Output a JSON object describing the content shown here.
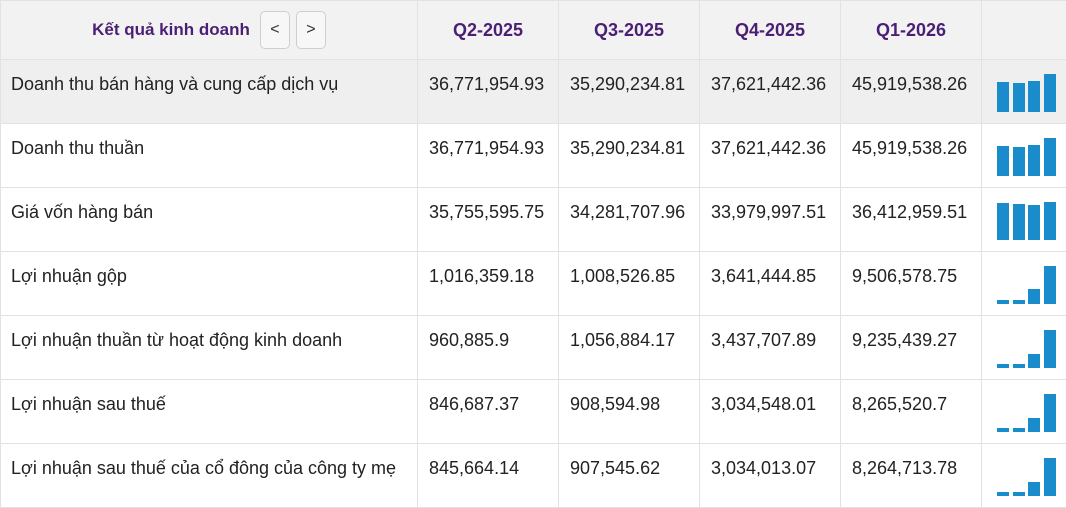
{
  "header": {
    "title": "Kết quả kinh doanh",
    "prev_label": "<",
    "next_label": ">",
    "periods": [
      "Q2-2025",
      "Q3-2025",
      "Q4-2025",
      "Q1-2026"
    ]
  },
  "colors": {
    "accent": "#4b1f74",
    "bar": "#1a8ccb",
    "highlight_row": "#efefef"
  },
  "rows": [
    {
      "label": "Doanh thu bán hàng và cung cấp dịch vụ",
      "values": [
        "36,771,954.93",
        "35,290,234.81",
        "37,621,442.36",
        "45,919,538.26"
      ],
      "raw": [
        36771954.93,
        35290234.81,
        37621442.36,
        45919538.26
      ]
    },
    {
      "label": "Doanh thu thuần",
      "values": [
        "36,771,954.93",
        "35,290,234.81",
        "37,621,442.36",
        "45,919,538.26"
      ],
      "raw": [
        36771954.93,
        35290234.81,
        37621442.36,
        45919538.26
      ]
    },
    {
      "label": "Giá vốn hàng bán",
      "values": [
        "35,755,595.75",
        "34,281,707.96",
        "33,979,997.51",
        "36,412,959.51"
      ],
      "raw": [
        35755595.75,
        34281707.96,
        33979997.51,
        36412959.51
      ]
    },
    {
      "label": "Lợi nhuận gộp",
      "values": [
        "1,016,359.18",
        "1,008,526.85",
        "3,641,444.85",
        "9,506,578.75"
      ],
      "raw": [
        1016359.18,
        1008526.85,
        3641444.85,
        9506578.75
      ]
    },
    {
      "label": "Lợi nhuận thuần từ hoạt động kinh doanh",
      "values": [
        "960,885.9",
        "1,056,884.17",
        "3,437,707.89",
        "9,235,439.27"
      ],
      "raw": [
        960885.9,
        1056884.17,
        3437707.89,
        9235439.27
      ]
    },
    {
      "label": "Lợi nhuận sau thuế",
      "values": [
        "846,687.37",
        "908,594.98",
        "3,034,548.01",
        "8,265,520.7"
      ],
      "raw": [
        846687.37,
        908594.98,
        3034548.01,
        8265520.7
      ]
    },
    {
      "label": "Lợi nhuận sau thuế của cổ đông của công ty mẹ",
      "values": [
        "845,664.14",
        "907,545.62",
        "3,034,013.07",
        "8,264,713.78"
      ],
      "raw": [
        845664.14,
        907545.62,
        3034013.07,
        8264713.78
      ]
    }
  ]
}
